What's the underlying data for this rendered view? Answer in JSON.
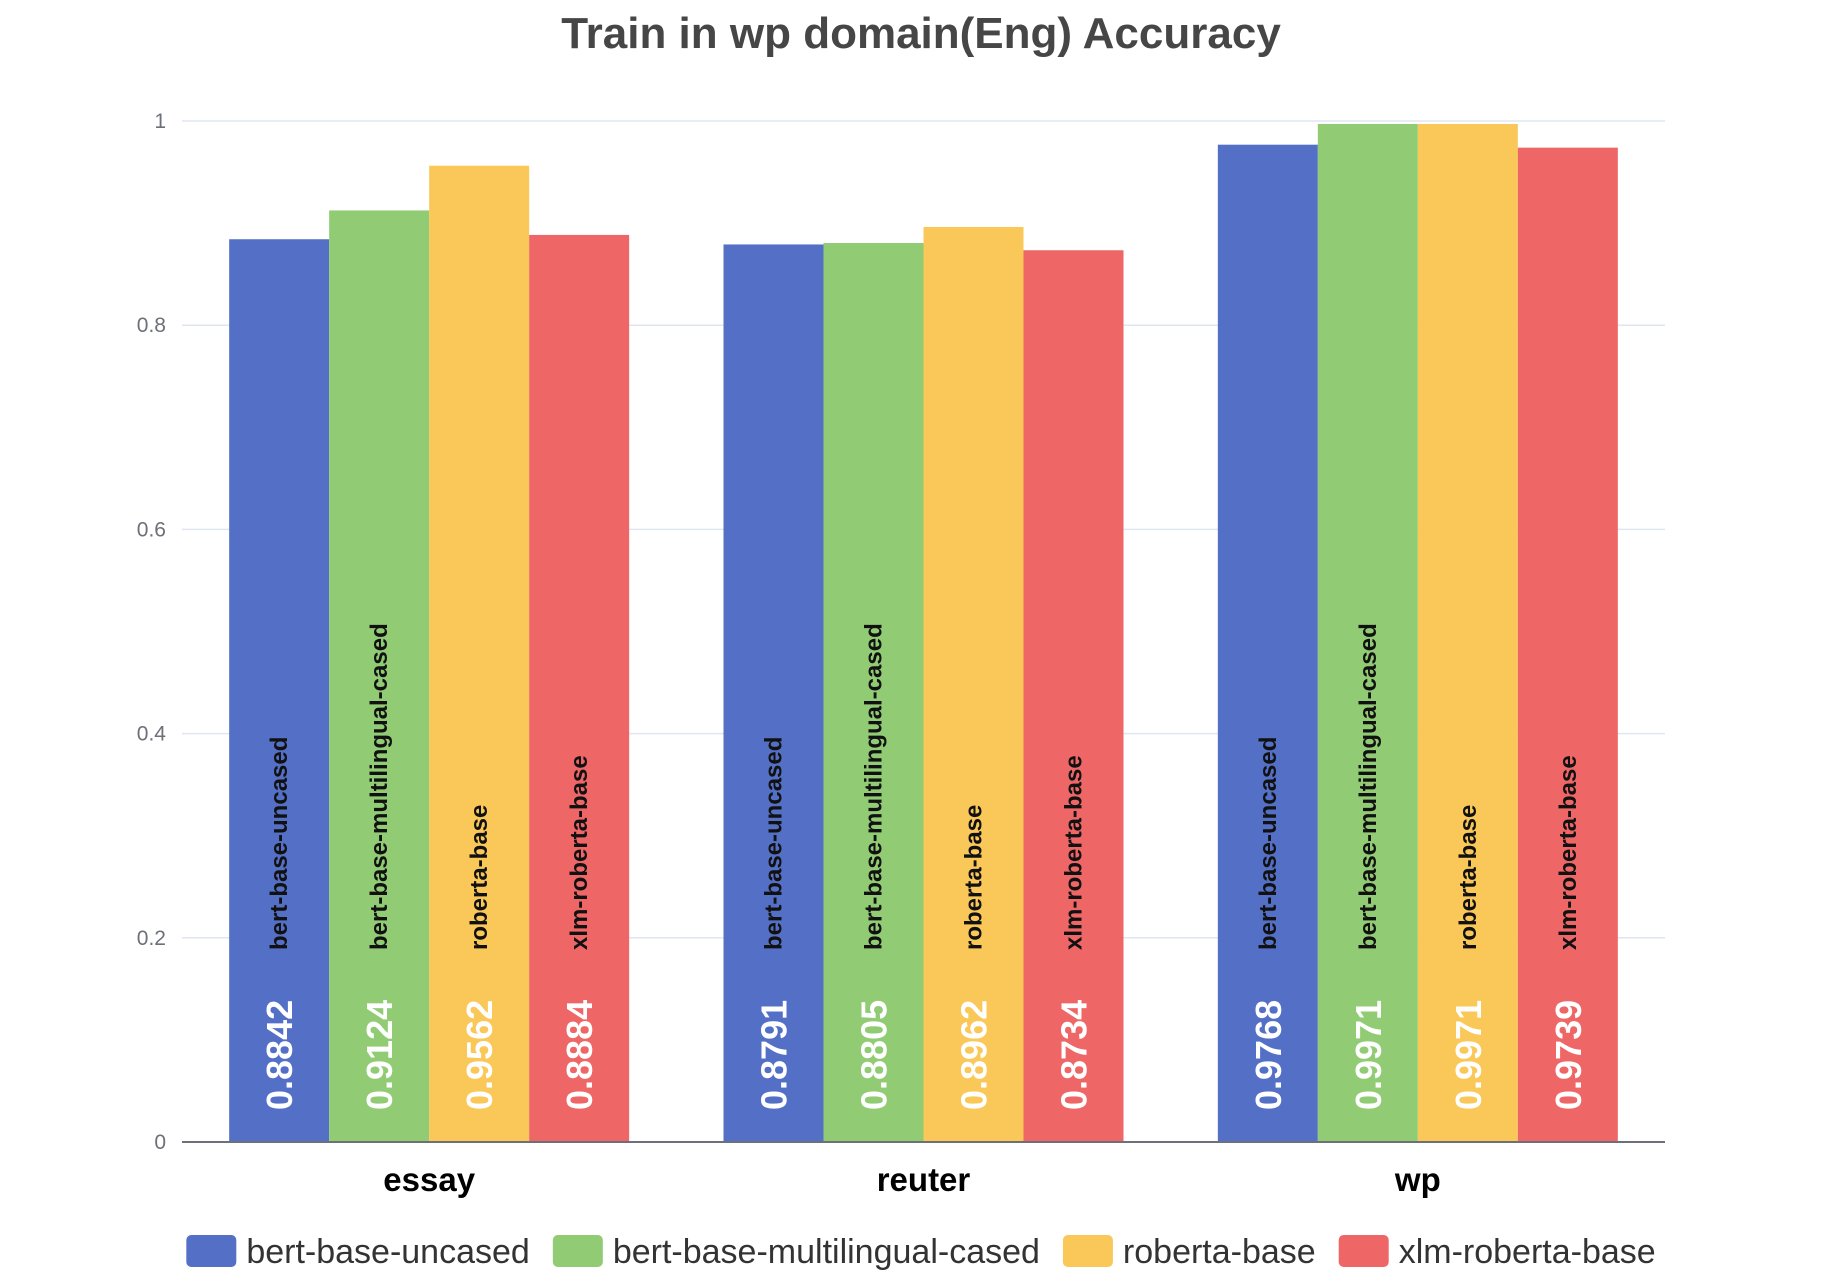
{
  "chart_data": {
    "type": "bar",
    "title": "Train in wp domain(Eng) Accuracy",
    "xlabel": "",
    "ylabel": "",
    "categories": [
      "essay",
      "reuter",
      "wp"
    ],
    "ylim": [
      0,
      1
    ],
    "yticks": [
      "0",
      "0.2",
      "0.4",
      "0.6",
      "0.8",
      "1"
    ],
    "grid": true,
    "legend_position": "bottom",
    "series": [
      {
        "name": "bert-base-uncased",
        "color": "#5470c6",
        "values": [
          0.8842,
          0.8791,
          0.9768
        ]
      },
      {
        "name": "bert-base-multilingual-cased",
        "color": "#91cc75",
        "values": [
          0.9124,
          0.8805,
          0.9971
        ]
      },
      {
        "name": "roberta-base",
        "color": "#fac858",
        "values": [
          0.9562,
          0.8962,
          0.9971
        ]
      },
      {
        "name": "xlm-roberta-base",
        "color": "#ee6666",
        "values": [
          0.8884,
          0.8734,
          0.9739
        ]
      }
    ],
    "value_labels": [
      [
        "0.8842",
        "0.8791",
        "0.9768"
      ],
      [
        "0.9124",
        "0.8805",
        "0.9971"
      ],
      [
        "0.9562",
        "0.8962",
        "0.9971"
      ],
      [
        "0.8884",
        "0.8734",
        "0.9739"
      ]
    ]
  }
}
